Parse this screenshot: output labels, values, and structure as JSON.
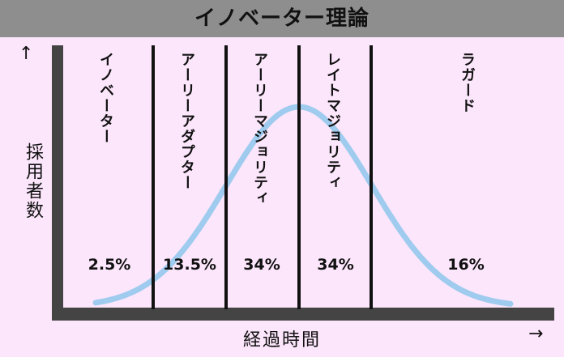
{
  "title": "イノベーター理論",
  "y_axis": {
    "label": "採用者数",
    "arrow": "↑"
  },
  "x_axis": {
    "label": "経過時間",
    "arrow": "→"
  },
  "segments": [
    {
      "label": "イノベーター",
      "percent": "2.5%"
    },
    {
      "label": "アーリーアダプター",
      "percent": "13.5%"
    },
    {
      "label": "アーリーマジョリティ",
      "percent": "34%"
    },
    {
      "label": "レイトマジョリティ",
      "percent": "34%"
    },
    {
      "label": "ラガード",
      "percent": "16%"
    }
  ],
  "colors": {
    "background": "#fce6fb",
    "title_bar": "#8e8e8e",
    "axis": "#444444",
    "curve": "#9ecbee",
    "divider": "#111111"
  }
}
